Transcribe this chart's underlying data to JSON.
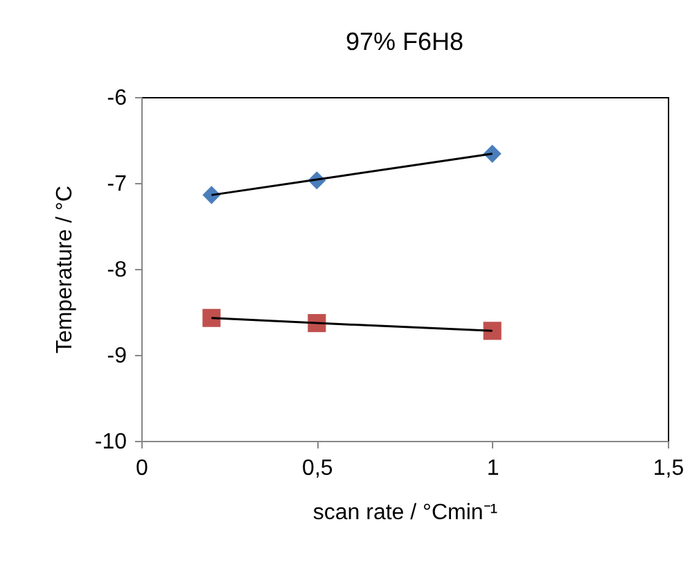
{
  "chart_data": {
    "type": "scatter",
    "title": "97% F6H8",
    "xlabel": "scan rate / °Cmin⁻¹",
    "ylabel": "Temperature / °C",
    "xlim": [
      0,
      1.5
    ],
    "xticks": [
      0,
      {
        "value": 0.5,
        "label": "0,5"
      },
      1,
      {
        "value": 1.5,
        "label": "1,5"
      }
    ],
    "ylim": [
      -10,
      -6
    ],
    "yticks": [
      -10,
      -9,
      -8,
      -7,
      -6
    ],
    "grid": false,
    "x": [
      0.2,
      0.5,
      1
    ],
    "series": [
      {
        "color": "#4a7ebb",
        "marker": "diamond",
        "values": [
          -7.14,
          -6.97,
          -6.66
        ]
      },
      {
        "color": "#c0504d",
        "marker": "square",
        "values": [
          -8.57,
          -8.63,
          -8.72
        ]
      },
      {
        "type": "line",
        "color": "#000000",
        "marker": "none",
        "values": [
          -7.14,
          -6.96,
          -6.66
        ]
      },
      {
        "type": "line",
        "color": "#000000",
        "marker": "none",
        "values": [
          -8.57,
          -8.63,
          -8.72
        ]
      }
    ]
  }
}
